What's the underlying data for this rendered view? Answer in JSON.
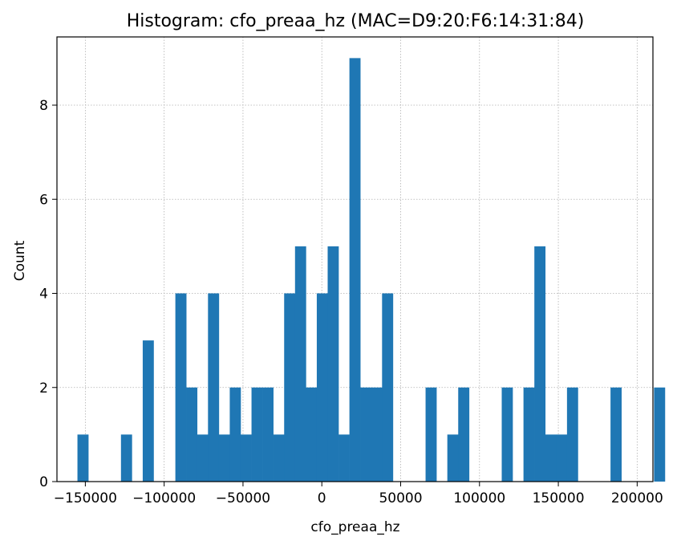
{
  "chart_data": {
    "type": "bar",
    "title": "Histogram: cfo_preaa_hz (MAC=D9:20:F6:14:31:84)",
    "xlabel": "cfo_preaa_hz",
    "ylabel": "Count",
    "xlim": [
      -168000,
      210000
    ],
    "ylim": [
      0,
      9.45
    ],
    "grid": true,
    "bar_color": "#1f77b4",
    "bin_start": -155000,
    "bin_width": 6900,
    "counts": [
      1,
      0,
      0,
      0,
      1,
      0,
      3,
      0,
      0,
      4,
      2,
      1,
      4,
      1,
      2,
      1,
      2,
      2,
      1,
      4,
      5,
      2,
      4,
      5,
      1,
      9,
      2,
      2,
      4,
      0,
      0,
      0,
      2,
      0,
      1,
      2,
      0,
      0,
      0,
      2,
      0,
      2,
      5,
      1,
      1,
      2,
      0,
      0,
      0,
      2,
      0,
      0,
      0,
      2,
      0
    ],
    "xticks": [
      -150000,
      -100000,
      -50000,
      0,
      50000,
      100000,
      150000,
      200000
    ],
    "xtick_labels": [
      "−150000",
      "−100000",
      "−50000",
      "0",
      "50000",
      "100000",
      "150000",
      "200000"
    ],
    "yticks": [
      0,
      2,
      4,
      6,
      8
    ],
    "ytick_labels": [
      "0",
      "2",
      "4",
      "6",
      "8"
    ]
  }
}
